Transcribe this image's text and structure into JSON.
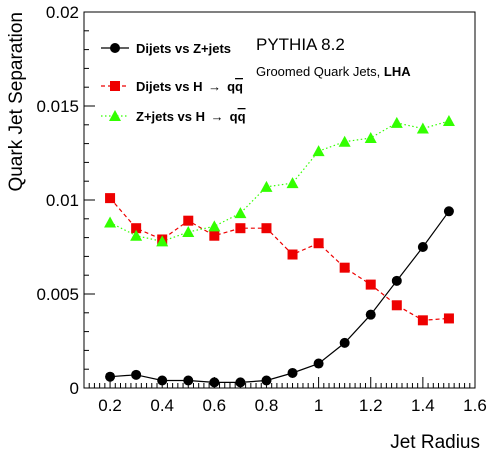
{
  "chart_data": {
    "type": "line",
    "xlabel": "Jet Radius",
    "ylabel": "Quark Jet Separation",
    "xlim": [
      0.1,
      1.6
    ],
    "ylim": [
      0,
      0.02
    ],
    "x_ticks": [
      0.2,
      0.4,
      0.6,
      0.8,
      1.0,
      1.2,
      1.4,
      1.6
    ],
    "x_tick_labels": [
      "0.2",
      "0.4",
      "0.6",
      "0.8",
      "1",
      "1.2",
      "1.4",
      "1.6"
    ],
    "y_ticks": [
      0,
      0.005,
      0.01,
      0.015,
      0.02
    ],
    "y_tick_labels": [
      "0",
      "0.005",
      "0.01",
      "0.015",
      "0.02"
    ],
    "grid": false,
    "legend_placement": "top-left",
    "annotations": {
      "title": "PYTHIA 8.2",
      "subtitle_prefix": "Groomed Quark Jets, ",
      "subtitle_bold": "LHA"
    },
    "x": [
      0.2,
      0.3,
      0.4,
      0.5,
      0.6,
      0.7,
      0.8,
      0.9,
      1.0,
      1.1,
      1.2,
      1.3,
      1.4,
      1.5
    ],
    "series": [
      {
        "name": "Dijets vs Z+jets",
        "marker": "circle",
        "color": "#000000",
        "line_style": "solid",
        "values": [
          0.0006,
          0.0007,
          0.0004,
          0.0004,
          0.0003,
          0.0003,
          0.0004,
          0.0008,
          0.0013,
          0.0024,
          0.0039,
          0.0057,
          0.0075,
          0.0094
        ]
      },
      {
        "name_prefix": "Dijets vs H ",
        "name_arrow": "→",
        "name_suffix": "q",
        "name_bar": "q",
        "marker": "square",
        "color": "#ee0000",
        "line_style": "dashed",
        "values": [
          0.0101,
          0.0085,
          0.0079,
          0.0089,
          0.0081,
          0.0085,
          0.0085,
          0.0071,
          0.0077,
          0.0064,
          0.0055,
          0.0044,
          0.0036,
          0.0037
        ]
      },
      {
        "name_prefix": "Z+jets vs H ",
        "name_arrow": "→",
        "name_suffix": "q",
        "name_bar": "q",
        "marker": "triangle",
        "color": "#33ff00",
        "line_style": "dotted",
        "values": [
          0.0088,
          0.0081,
          0.0078,
          0.0083,
          0.0086,
          0.0093,
          0.0107,
          0.0109,
          0.0126,
          0.0131,
          0.0133,
          0.0141,
          0.0138,
          0.0142
        ]
      }
    ]
  }
}
